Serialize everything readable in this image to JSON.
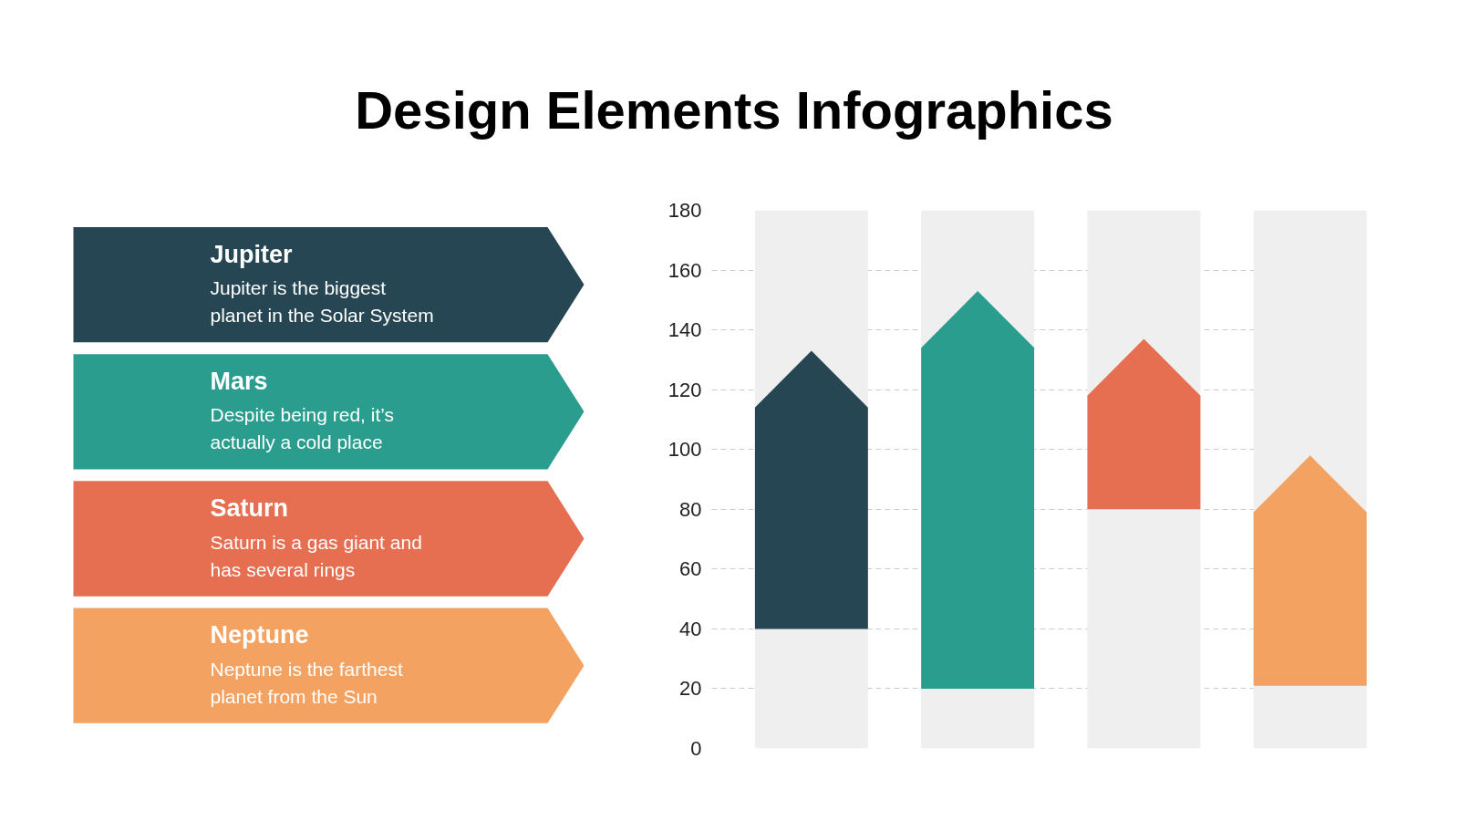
{
  "chart_data": [
    {
      "type": "other",
      "title": "Design Elements Infographics",
      "categories": [
        "Jupiter",
        "Mars",
        "Saturn",
        "Neptune"
      ],
      "colors": [
        "#264653",
        "#2a9d8f",
        "#e76f51",
        "#f4a261"
      ],
      "annotations": [
        "Jupiter is the biggest planet in the Solar System",
        "Despite being red, it’s actually a cold place",
        "Saturn is a gas giant and has several rings",
        "Neptune is the farthest planet from the Sun"
      ]
    },
    {
      "type": "bar",
      "categories": [
        null,
        null,
        null,
        null
      ],
      "values": [
        93,
        133,
        57,
        77
      ],
      "base": [
        40,
        20,
        80,
        21
      ],
      "colors": [
        "#264653",
        "#2a9d8f",
        "#e76f51",
        "#f4a261"
      ],
      "ylim": [
        0,
        180
      ],
      "yticks": [
        0,
        20,
        40,
        60,
        80,
        100,
        120,
        140,
        160,
        180
      ],
      "grid": "y",
      "tick_labels": "y"
    }
  ]
}
